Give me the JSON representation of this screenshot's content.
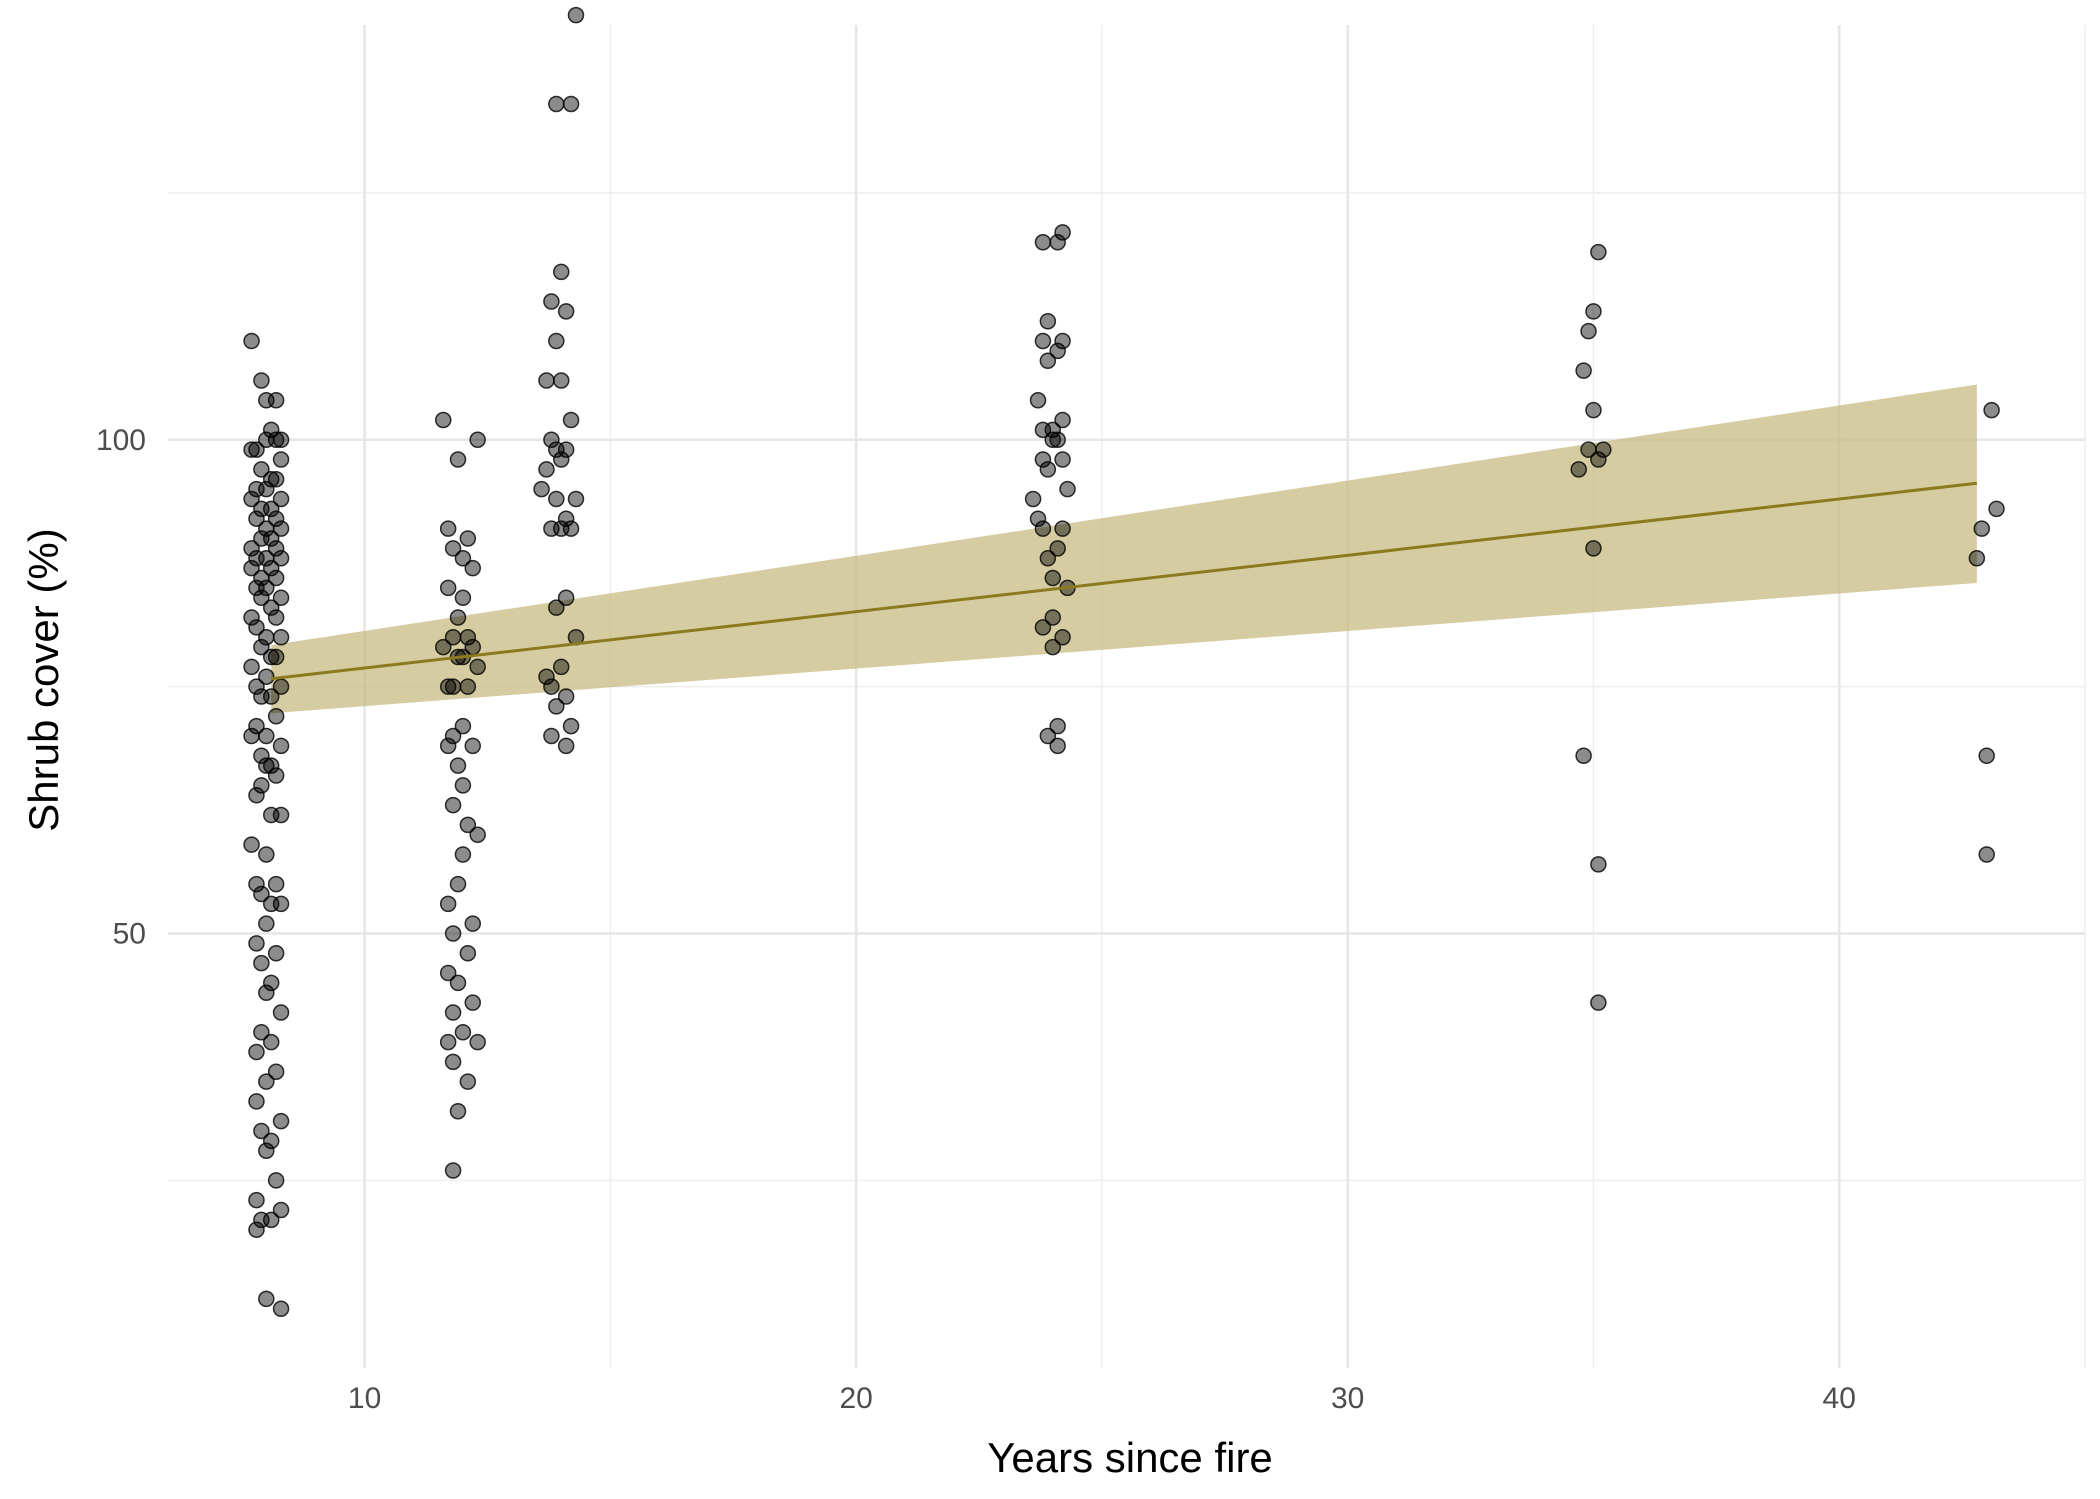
{
  "chart_data": {
    "type": "scatter",
    "title": "",
    "xlabel": "Years since fire",
    "ylabel": "Shrub cover (%)",
    "xlim": [
      6,
      45
    ],
    "ylim": [
      6,
      142
    ],
    "x_ticks": [
      10,
      20,
      30,
      40
    ],
    "x_tick_labels": [
      "10",
      "20",
      "30",
      "40"
    ],
    "y_ticks": [
      50,
      100
    ],
    "y_tick_labels": [
      "50",
      "100"
    ],
    "grid": true,
    "legend": "none",
    "point_color": "#000000",
    "point_opacity": 0.45,
    "trend": {
      "type": "linear",
      "color": "#8b7a1e",
      "ribbon_color": "#c8bb81",
      "x": [
        8.1,
        42.8
      ],
      "y": [
        75.8,
        95.6
      ],
      "lower": [
        72.3,
        85.5
      ],
      "upper": [
        79.2,
        105.6
      ]
    },
    "series": [
      {
        "x": [
          7.7,
          7.9,
          8.0,
          8.2,
          8.3,
          7.8,
          8.1,
          8.2,
          7.7,
          8.0,
          8.3,
          7.9,
          8.1,
          7.8,
          8.2,
          8.0,
          7.7,
          8.3,
          7.9,
          8.1,
          7.8,
          8.2,
          8.0,
          8.3,
          7.7,
          7.9,
          8.1,
          8.2,
          7.8,
          8.0,
          8.3,
          7.7,
          7.9,
          8.1,
          8.2,
          7.8,
          8.0,
          8.3,
          7.9,
          8.1,
          7.7,
          8.2,
          7.8,
          8.0,
          8.3,
          7.9,
          8.1,
          8.2,
          7.7,
          8.0,
          7.8,
          8.3,
          7.9,
          8.1,
          8.2,
          7.8,
          8.0,
          7.7,
          8.3,
          7.9,
          8.1,
          8.0,
          8.2,
          7.8,
          7.9,
          8.1,
          8.3,
          7.7,
          8.0,
          8.2,
          7.8,
          7.9,
          8.1,
          8.3,
          8.0,
          7.8,
          8.2,
          7.9,
          8.1,
          8.0,
          8.3,
          7.9,
          8.1,
          7.8,
          8.2,
          8.0,
          7.8,
          8.3,
          7.9,
          8.1,
          8.0,
          8.2,
          7.8,
          8.3,
          7.9,
          8.1,
          7.8,
          8.3,
          8.0
        ],
        "y": [
          110,
          106,
          104,
          104,
          100,
          99,
          101,
          100,
          99,
          100,
          98,
          97,
          96,
          95,
          96,
          95,
          94,
          94,
          93,
          93,
          92,
          92,
          91,
          91,
          89,
          90,
          90,
          89,
          88,
          88,
          88,
          87,
          86,
          87,
          86,
          85,
          85,
          84,
          84,
          83,
          82,
          82,
          81,
          80,
          80,
          79,
          78,
          78,
          77,
          76,
          75,
          75,
          74,
          74,
          72,
          71,
          70,
          70,
          69,
          68,
          67,
          67,
          66,
          64,
          65,
          62,
          62,
          59,
          58,
          55,
          55,
          54,
          53,
          53,
          51,
          49,
          48,
          47,
          45,
          44,
          42,
          40,
          39,
          38,
          36,
          35,
          33,
          31,
          30,
          29,
          28,
          25,
          23,
          22,
          21,
          21,
          20,
          12,
          13
        ]
      },
      {
        "x": [
          11.6,
          12.3,
          11.9,
          11.7,
          12.1,
          11.8,
          12.0,
          12.2,
          11.7,
          12.0,
          11.9,
          11.8,
          12.1,
          12.2,
          11.6,
          11.9,
          12.0,
          12.3,
          11.7,
          11.8,
          12.1,
          12.0,
          11.8,
          11.7,
          12.2,
          11.9,
          12.0,
          11.8,
          12.1,
          12.3,
          12.0,
          11.9,
          11.7,
          12.2,
          11.8,
          12.1,
          11.7,
          11.9,
          12.2,
          11.8,
          12.0,
          11.7,
          12.3,
          11.8,
          12.1,
          11.9,
          11.8
        ],
        "y": [
          102,
          100,
          98,
          91,
          90,
          89,
          88,
          87,
          85,
          84,
          82,
          80,
          80,
          79,
          79,
          78,
          78,
          77,
          75,
          75,
          75,
          71,
          70,
          69,
          69,
          67,
          65,
          63,
          61,
          60,
          58,
          55,
          53,
          51,
          50,
          48,
          46,
          45,
          43,
          42,
          40,
          39,
          39,
          37,
          35,
          32,
          26
        ]
      },
      {
        "x": [
          14.3,
          13.9,
          14.2,
          14.0,
          13.8,
          14.1,
          13.9,
          13.7,
          14.0,
          14.2,
          13.8,
          13.9,
          14.1,
          14.0,
          13.7,
          13.6,
          14.3,
          13.9,
          14.1,
          14.0,
          13.8,
          14.2,
          14.1,
          13.9,
          14.3,
          14.0,
          13.7,
          13.8,
          14.1,
          13.9,
          14.2,
          13.8,
          14.1
        ],
        "y": [
          143,
          134,
          134,
          117,
          114,
          113,
          110,
          106,
          106,
          102,
          100,
          99,
          99,
          98,
          97,
          95,
          94,
          94,
          92,
          91,
          91,
          91,
          84,
          83,
          80,
          77,
          76,
          75,
          74,
          73,
          71,
          70,
          69
        ]
      },
      {
        "x": [
          23.8,
          24.2,
          24.1,
          23.9,
          23.8,
          24.2,
          24.1,
          23.9,
          23.7,
          24.2,
          24.0,
          23.8,
          24.1,
          24.0,
          24.2,
          23.8,
          23.9,
          24.3,
          23.6,
          23.7,
          24.2,
          23.8,
          24.1,
          23.9,
          24.0,
          24.3,
          24.0,
          23.8,
          24.2,
          24.0,
          24.1,
          23.9,
          24.1
        ],
        "y": [
          120,
          121,
          120,
          112,
          110,
          110,
          109,
          108,
          104,
          102,
          101,
          101,
          100,
          100,
          98,
          98,
          97,
          95,
          94,
          92,
          91,
          91,
          89,
          88,
          86,
          85,
          82,
          81,
          80,
          79,
          71,
          70,
          69
        ]
      },
      {
        "x": [
          35.1,
          35.0,
          34.9,
          34.8,
          35.0,
          34.9,
          35.2,
          35.1,
          34.7,
          35.0,
          34.8,
          35.1,
          35.1
        ],
        "y": [
          119,
          113,
          111,
          107,
          103,
          99,
          99,
          98,
          97,
          89,
          68,
          57,
          43
        ]
      },
      {
        "x": [
          43.1,
          43.2,
          42.9,
          42.8,
          43.0,
          43.0
        ],
        "y": [
          103,
          93,
          91,
          88,
          68,
          58
        ]
      }
    ]
  }
}
